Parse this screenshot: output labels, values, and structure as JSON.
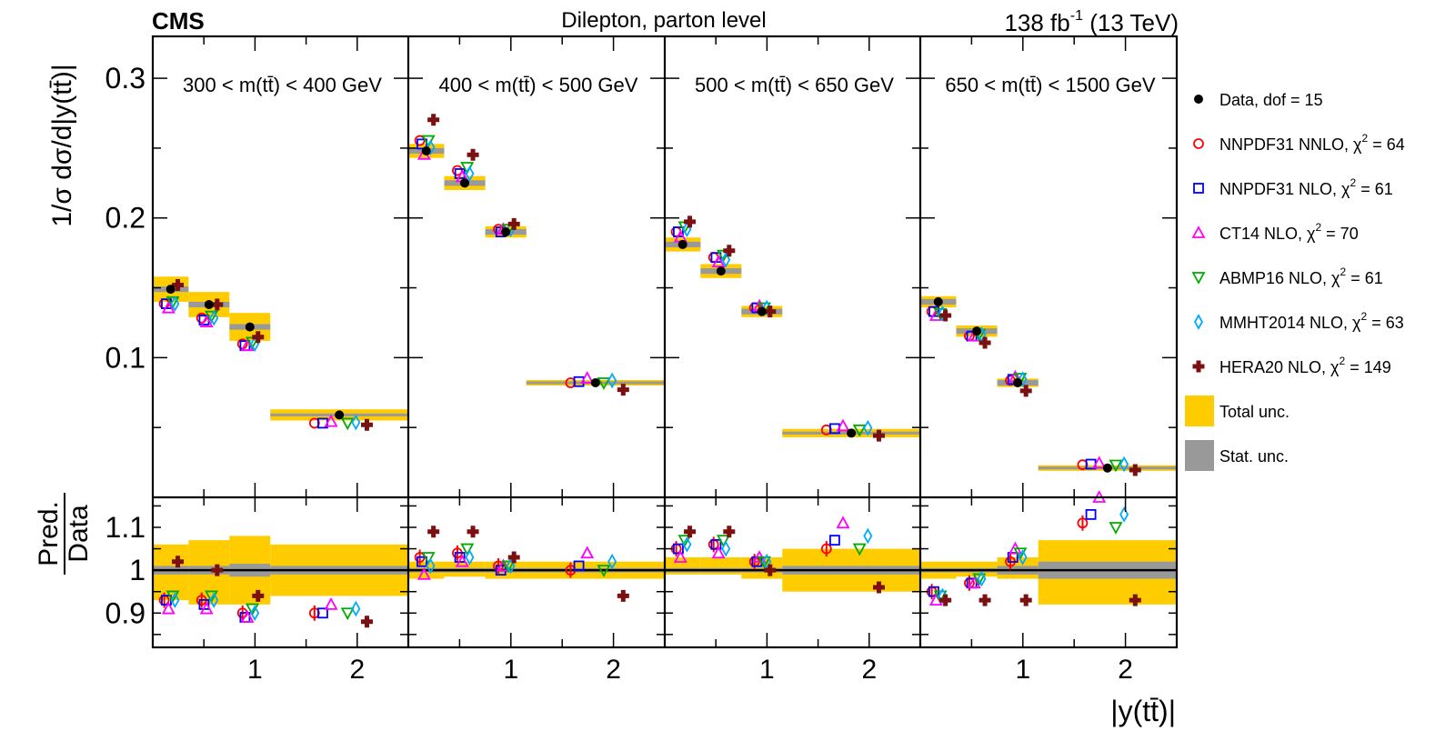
{
  "header": {
    "cms": "CMS",
    "title": "Dilepton, parton level",
    "lumi": "138 fb",
    "lumi_exp": "-1",
    "energy": " (13 TeV)"
  },
  "axes": {
    "ylabel_top": "1/σ dσ/d|y(tt̄)|",
    "ylabel_ratio_num": "Pred.",
    "ylabel_ratio_den": "Data",
    "xlabel": "|y(tt̄)|",
    "top_ylim": [
      0.0,
      0.33
    ],
    "top_yticks": [
      {
        "v": 0.1,
        "label": "0.1"
      },
      {
        "v": 0.2,
        "label": "0.2"
      },
      {
        "v": 0.3,
        "label": "0.3"
      }
    ],
    "ratio_ylim": [
      0.82,
      1.17
    ],
    "ratio_yticks": [
      {
        "v": 0.9,
        "label": "0.9"
      },
      {
        "v": 1.0,
        "label": "1"
      },
      {
        "v": 1.1,
        "label": "1.1"
      }
    ],
    "xlim": [
      0,
      2.5
    ],
    "xticks": [
      {
        "v": 1,
        "label": "1"
      },
      {
        "v": 2,
        "label": "2"
      }
    ]
  },
  "legend": {
    "placement": "right",
    "items": [
      {
        "marker": "dot",
        "color": "#000000",
        "label": "Data, dof = 15"
      },
      {
        "marker": "circle",
        "color": "#ff0000",
        "label": "NNPDF31 NNLO, ",
        "chi": "64"
      },
      {
        "marker": "square",
        "color": "#0000ff",
        "label": "NNPDF31 NLO, ",
        "chi": "61"
      },
      {
        "marker": "triup",
        "color": "#ff00ff",
        "label": "CT14 NLO, ",
        "chi": "70"
      },
      {
        "marker": "tridown",
        "color": "#00aa00",
        "label": "ABMP16 NLO, ",
        "chi": "61"
      },
      {
        "marker": "diamond",
        "color": "#00aaff",
        "label": "MMHT2014 NLO, ",
        "chi": "63"
      },
      {
        "marker": "cross",
        "color": "#7a1010",
        "label": "HERA20 NLO, ",
        "chi": "149"
      },
      {
        "marker": "box",
        "color": "#ffcc00",
        "label": "Total unc."
      },
      {
        "marker": "box",
        "color": "#999999",
        "label": "Stat. unc."
      }
    ],
    "chi_symbol": "χ",
    "chi_exp": "2",
    "chi_eq": " = "
  },
  "colors": {
    "total_unc": "#ffcc00",
    "stat_unc": "#999999"
  },
  "chart_data": {
    "type": "scatter",
    "bins": [
      [
        0,
        0.35
      ],
      [
        0.35,
        0.75
      ],
      [
        0.75,
        1.15
      ],
      [
        1.15,
        2.5
      ]
    ],
    "series_names": [
      "Data",
      "NNPDF31 NNLO",
      "NNPDF31 NLO",
      "CT14 NLO",
      "ABMP16 NLO",
      "MMHT2014 NLO",
      "HERA20 NLO"
    ],
    "panels": [
      {
        "label": "300 < m(tt̄) < 400 GeV",
        "data": [
          0.149,
          0.138,
          0.122,
          0.059
        ],
        "total_unc": [
          0.009,
          0.009,
          0.01,
          0.004
        ],
        "stat_unc": [
          0.002,
          0.002,
          0.002,
          0.001
        ],
        "ratio_total": [
          [
            0.93,
            1.06
          ],
          [
            0.92,
            1.07
          ],
          [
            0.92,
            1.08
          ],
          [
            0.94,
            1.06
          ]
        ],
        "ratio_stat": [
          [
            0.99,
            1.01
          ],
          [
            0.99,
            1.01
          ],
          [
            0.985,
            1.015
          ],
          [
            0.99,
            1.01
          ]
        ],
        "ratio": [
          [
            0.93,
            0.93,
            0.9,
            0.9
          ],
          [
            0.93,
            0.92,
            0.89,
            0.9
          ],
          [
            0.91,
            0.91,
            0.89,
            0.92
          ],
          [
            0.94,
            0.94,
            0.91,
            0.9
          ],
          [
            0.93,
            0.93,
            0.9,
            0.91
          ],
          [
            1.02,
            1.0,
            0.94,
            0.88
          ]
        ]
      },
      {
        "label": "400 < m(tt̄) < 500 GeV",
        "data": [
          0.248,
          0.225,
          0.19,
          0.082
        ],
        "total_unc": [
          0.005,
          0.005,
          0.004,
          0.002
        ],
        "stat_unc": [
          0.002,
          0.002,
          0.002,
          0.001
        ],
        "ratio_total": [
          [
            0.98,
            1.02
          ],
          [
            0.985,
            1.02
          ],
          [
            0.98,
            1.02
          ],
          [
            0.98,
            1.02
          ]
        ],
        "ratio_stat": [
          [
            0.995,
            1.005
          ],
          [
            0.995,
            1.005
          ],
          [
            0.995,
            1.005
          ],
          [
            0.995,
            1.005
          ]
        ],
        "ratio": [
          [
            1.03,
            1.04,
            1.01,
            1.0
          ],
          [
            1.02,
            1.03,
            1.0,
            1.01
          ],
          [
            0.99,
            1.02,
            1.01,
            1.04
          ],
          [
            1.03,
            1.05,
            1.01,
            1.0
          ],
          [
            1.01,
            1.03,
            1.01,
            1.02
          ],
          [
            1.09,
            1.09,
            1.03,
            0.94
          ]
        ]
      },
      {
        "label": "500 < m(tt̄) < 650 GeV",
        "data": [
          0.181,
          0.162,
          0.133,
          0.046
        ],
        "total_unc": [
          0.005,
          0.005,
          0.004,
          0.003
        ],
        "stat_unc": [
          0.002,
          0.002,
          0.002,
          0.001
        ],
        "ratio_total": [
          [
            0.99,
            1.03
          ],
          [
            0.99,
            1.03
          ],
          [
            0.98,
            1.03
          ],
          [
            0.95,
            1.05
          ]
        ],
        "ratio_stat": [
          [
            0.995,
            1.005
          ],
          [
            0.995,
            1.005
          ],
          [
            0.995,
            1.005
          ],
          [
            0.99,
            1.01
          ]
        ],
        "ratio": [
          [
            1.05,
            1.06,
            1.02,
            1.05
          ],
          [
            1.05,
            1.06,
            1.02,
            1.07
          ],
          [
            1.03,
            1.04,
            1.03,
            1.11
          ],
          [
            1.07,
            1.07,
            1.02,
            1.05
          ],
          [
            1.06,
            1.05,
            1.02,
            1.08
          ],
          [
            1.09,
            1.09,
            1.0,
            0.96
          ]
        ]
      },
      {
        "label": "650 < m(tt̄) < 1500 GeV",
        "data": [
          0.14,
          0.119,
          0.082,
          0.021
        ],
        "total_unc": [
          0.004,
          0.004,
          0.003,
          0.002
        ],
        "stat_unc": [
          0.002,
          0.002,
          0.002,
          0.001
        ],
        "ratio_total": [
          [
            0.98,
            1.02
          ],
          [
            0.985,
            1.02
          ],
          [
            0.98,
            1.03
          ],
          [
            0.92,
            1.07
          ]
        ],
        "ratio_stat": [
          [
            0.995,
            1.005
          ],
          [
            0.995,
            1.005
          ],
          [
            0.99,
            1.01
          ],
          [
            0.98,
            1.02
          ]
        ],
        "ratio": [
          [
            0.95,
            0.97,
            1.02,
            1.11
          ],
          [
            0.95,
            0.97,
            1.03,
            1.13
          ],
          [
            0.93,
            0.97,
            1.05,
            1.17
          ],
          [
            0.94,
            0.98,
            1.04,
            1.1
          ],
          [
            0.94,
            0.98,
            1.03,
            1.13
          ],
          [
            0.93,
            0.93,
            0.93,
            0.93
          ]
        ]
      }
    ]
  }
}
